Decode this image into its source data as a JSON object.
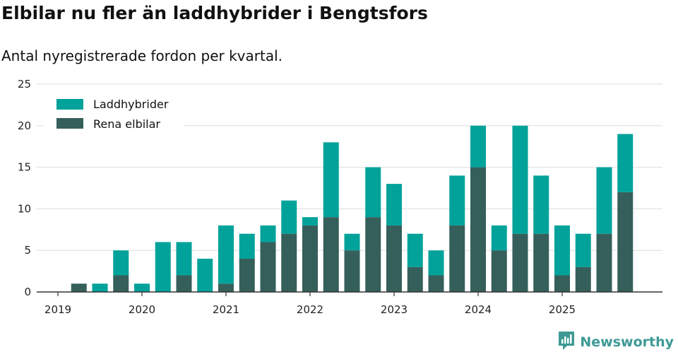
{
  "title": "Elbilar nu fler än laddhybrider i Bengtsfors",
  "subtitle": "Antal nyregistrerade fordon per kvartal.",
  "brand": "Newsworthy",
  "colors": {
    "laddhybrider": "#00a29a",
    "rena_elbilar": "#355f5b",
    "grid": "#dddddd",
    "axis": "#333333",
    "brand": "#3e9a95"
  },
  "chart_data": {
    "type": "bar",
    "stacked": true,
    "title": "Elbilar nu fler än laddhybrider i Bengtsfors",
    "subtitle": "Antal nyregistrerade fordon per kvartal.",
    "xlabel": "",
    "ylabel": "",
    "ylim": [
      0,
      25
    ],
    "yticks": [
      0,
      5,
      10,
      15,
      20,
      25
    ],
    "xticks": [
      "2019",
      "2020",
      "2021",
      "2022",
      "2023",
      "2024",
      "2025"
    ],
    "categories": [
      "2019 Q1",
      "2019 Q2",
      "2019 Q3",
      "2019 Q4",
      "2020 Q1",
      "2020 Q2",
      "2020 Q3",
      "2020 Q4",
      "2021 Q1",
      "2021 Q2",
      "2021 Q3",
      "2021 Q4",
      "2022 Q1",
      "2022 Q2",
      "2022 Q3",
      "2022 Q4",
      "2023 Q1",
      "2023 Q2",
      "2023 Q3",
      "2023 Q4",
      "2024 Q1",
      "2024 Q2",
      "2024 Q3",
      "2024 Q4",
      "2025 Q1",
      "2025 Q2",
      "2025 Q3",
      "2025 Q4"
    ],
    "series": [
      {
        "name": "Rena elbilar",
        "color": "#355f5b",
        "values": [
          0,
          1,
          0,
          2,
          0,
          0,
          2,
          0,
          1,
          4,
          6,
          7,
          8,
          9,
          5,
          9,
          8,
          3,
          2,
          8,
          15,
          5,
          7,
          7,
          2,
          3,
          7,
          12
        ]
      },
      {
        "name": "Laddhybrider",
        "color": "#00a29a",
        "values": [
          0,
          0,
          1,
          3,
          1,
          6,
          4,
          4,
          7,
          3,
          2,
          4,
          1,
          9,
          2,
          6,
          5,
          4,
          3,
          6,
          5,
          3,
          13,
          7,
          6,
          4,
          8,
          7
        ]
      }
    ],
    "legend": [
      "Laddhybrider",
      "Rena elbilar"
    ],
    "legend_position": "top-left",
    "grid": true
  }
}
